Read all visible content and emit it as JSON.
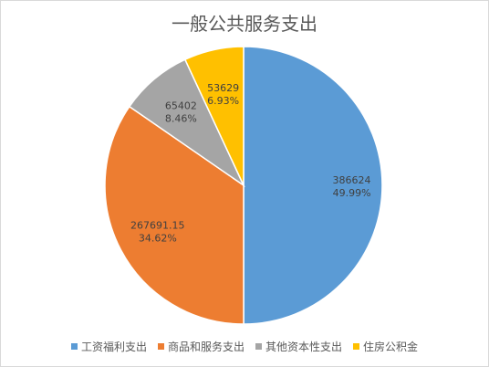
{
  "chart_data": {
    "type": "pie",
    "title": "一般公共服务支出",
    "slices": [
      {
        "label": "工资福利支出",
        "value": 386624,
        "value_label": "386624",
        "percent_label": "49.99%",
        "color": "#5b9bd5"
      },
      {
        "label": "商品和服务支出",
        "value": 267691.15,
        "value_label": "267691.15",
        "percent_label": "34.62%",
        "color": "#ed7d31"
      },
      {
        "label": "其他资本性支出",
        "value": 65402,
        "value_label": "65402",
        "percent_label": "8.46%",
        "color": "#a5a5a5"
      },
      {
        "label": "住房公积金",
        "value": 53629,
        "value_label": "53629",
        "percent_label": "6.93%",
        "color": "#ffc000"
      }
    ],
    "legend_position": "bottom",
    "start_angle": "12 o'clock, clockwise"
  }
}
